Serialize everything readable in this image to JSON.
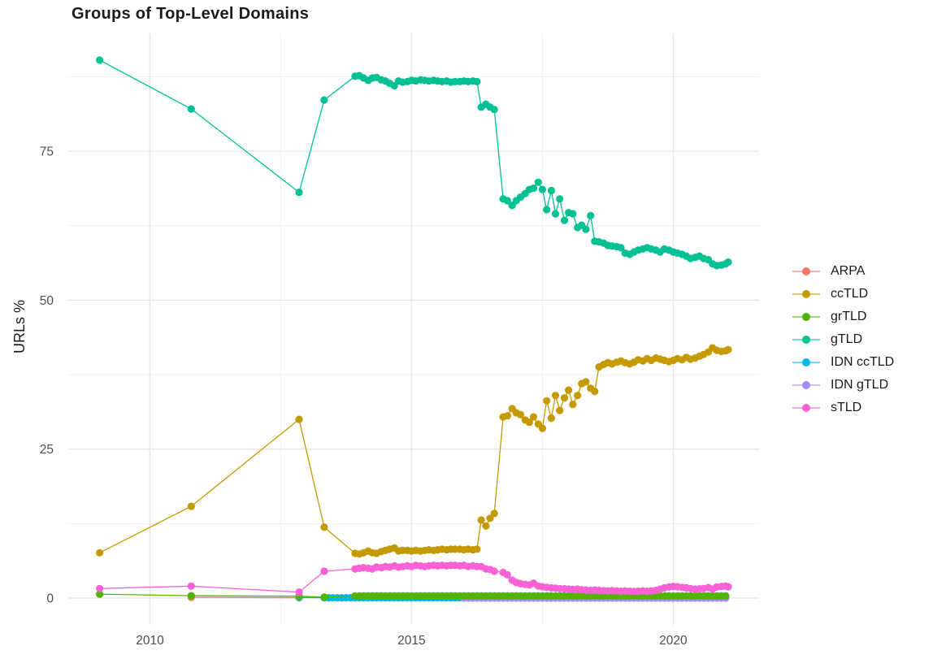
{
  "title": "Groups of Top-Level Domains",
  "y_axis": {
    "title": "URLs %",
    "major_ticks": [
      0,
      25,
      50,
      75
    ],
    "minor_ticks": [
      12.5,
      37.5,
      62.5,
      87.5
    ]
  },
  "x_axis": {
    "major_ticks": [
      2010,
      2015,
      2020
    ],
    "minor_ticks": [
      2012.5,
      2017.5
    ]
  },
  "grid": {
    "major_color": "#e4e4e4",
    "minor_color": "#efefef",
    "tick_label_color": "#4d4d4d"
  },
  "legend": {
    "items": [
      {
        "label": "ARPA",
        "color": "#F8766D"
      },
      {
        "label": "ccTLD",
        "color": "#C49A00"
      },
      {
        "label": "grTLD",
        "color": "#53B400"
      },
      {
        "label": "gTLD",
        "color": "#00C094"
      },
      {
        "label": "IDN ccTLD",
        "color": "#00B6EB"
      },
      {
        "label": "IDN gTLD",
        "color": "#A58AFF"
      },
      {
        "label": "sTLD",
        "color": "#FB61D7"
      }
    ]
  },
  "chart_data": {
    "type": "line",
    "title": "Groups of Top-Level Domains",
    "xlabel": "",
    "ylabel": "URLs %",
    "xlim": [
      2008.44,
      2021.64
    ],
    "ylim": [
      -4.5,
      94.8
    ],
    "legend_position": "right",
    "grid": "on",
    "draw_order": [
      "ARPA",
      "IDN ccTLD",
      "IDN gTLD",
      "grTLD",
      "ccTLD",
      "gTLD",
      "sTLD"
    ],
    "series": [
      {
        "name": "ARPA",
        "color": "#F8766D",
        "points": [
          [
            2010.79,
            0.12
          ],
          [
            2012.85,
            0.05
          ]
        ]
      },
      {
        "name": "ccTLD",
        "color": "#C49A00",
        "points": [
          [
            2009.04,
            7.6
          ],
          [
            2010.79,
            15.4
          ],
          [
            2012.85,
            30.0
          ],
          [
            2013.33,
            11.9
          ],
          [
            2013.92,
            7.5
          ],
          [
            2014.0,
            7.4
          ],
          [
            2014.08,
            7.6
          ],
          [
            2014.17,
            7.9
          ],
          [
            2014.25,
            7.6
          ],
          [
            2014.33,
            7.5
          ],
          [
            2014.42,
            7.8
          ],
          [
            2014.5,
            8.0
          ],
          [
            2014.58,
            8.2
          ],
          [
            2014.67,
            8.4
          ],
          [
            2014.75,
            7.9
          ],
          [
            2014.83,
            8.0
          ],
          [
            2014.92,
            8.0
          ],
          [
            2015.0,
            7.9
          ],
          [
            2015.08,
            8.0
          ],
          [
            2015.17,
            7.9
          ],
          [
            2015.25,
            8.0
          ],
          [
            2015.33,
            8.1
          ],
          [
            2015.42,
            8.0
          ],
          [
            2015.5,
            8.1
          ],
          [
            2015.58,
            8.2
          ],
          [
            2015.67,
            8.1
          ],
          [
            2015.75,
            8.2
          ],
          [
            2015.83,
            8.2
          ],
          [
            2015.92,
            8.2
          ],
          [
            2016.0,
            8.1
          ],
          [
            2016.08,
            8.2
          ],
          [
            2016.17,
            8.1
          ],
          [
            2016.25,
            8.2
          ],
          [
            2016.33,
            13.1
          ],
          [
            2016.42,
            12.1
          ],
          [
            2016.5,
            13.4
          ],
          [
            2016.58,
            14.2
          ],
          [
            2016.75,
            30.4
          ],
          [
            2016.83,
            30.6
          ],
          [
            2016.92,
            31.8
          ],
          [
            2017.0,
            31.1
          ],
          [
            2017.08,
            30.8
          ],
          [
            2017.17,
            29.9
          ],
          [
            2017.25,
            29.5
          ],
          [
            2017.33,
            30.4
          ],
          [
            2017.42,
            29.2
          ],
          [
            2017.5,
            28.5
          ],
          [
            2017.58,
            33.1
          ],
          [
            2017.67,
            30.2
          ],
          [
            2017.75,
            34.0
          ],
          [
            2017.83,
            31.5
          ],
          [
            2017.92,
            33.6
          ],
          [
            2018.0,
            34.9
          ],
          [
            2018.08,
            32.5
          ],
          [
            2018.17,
            34.0
          ],
          [
            2018.25,
            36.0
          ],
          [
            2018.33,
            36.3
          ],
          [
            2018.42,
            35.2
          ],
          [
            2018.5,
            34.7
          ],
          [
            2018.58,
            38.8
          ],
          [
            2018.67,
            39.2
          ],
          [
            2018.75,
            39.5
          ],
          [
            2018.83,
            39.3
          ],
          [
            2018.92,
            39.6
          ],
          [
            2019.0,
            39.8
          ],
          [
            2019.08,
            39.5
          ],
          [
            2019.17,
            39.3
          ],
          [
            2019.25,
            39.6
          ],
          [
            2019.33,
            40.0
          ],
          [
            2019.42,
            39.8
          ],
          [
            2019.5,
            40.2
          ],
          [
            2019.58,
            39.9
          ],
          [
            2019.67,
            40.3
          ],
          [
            2019.75,
            40.1
          ],
          [
            2019.83,
            39.9
          ],
          [
            2019.92,
            39.7
          ],
          [
            2020.0,
            39.9
          ],
          [
            2020.08,
            40.2
          ],
          [
            2020.17,
            40.0
          ],
          [
            2020.25,
            40.4
          ],
          [
            2020.33,
            40.1
          ],
          [
            2020.42,
            40.3
          ],
          [
            2020.5,
            40.6
          ],
          [
            2020.58,
            40.9
          ],
          [
            2020.67,
            41.3
          ],
          [
            2020.75,
            42.0
          ],
          [
            2020.83,
            41.6
          ],
          [
            2020.92,
            41.4
          ],
          [
            2021.0,
            41.5
          ],
          [
            2021.05,
            41.7
          ]
        ]
      },
      {
        "name": "grTLD",
        "color": "#53B400",
        "points": [
          [
            2009.04,
            0.65
          ],
          [
            2010.79,
            0.4
          ],
          [
            2012.85,
            0.3
          ],
          [
            2013.33,
            0.15
          ]
        ],
        "flat": {
          "from": 2013.92,
          "to": 2021.05,
          "step": 0.08333,
          "value": 0.35
        }
      },
      {
        "name": "gTLD",
        "color": "#00C094",
        "points": [
          [
            2009.04,
            90.3
          ],
          [
            2010.79,
            82.1
          ],
          [
            2012.85,
            68.1
          ],
          [
            2013.33,
            83.6
          ],
          [
            2013.92,
            87.6
          ],
          [
            2014.0,
            87.7
          ],
          [
            2014.08,
            87.3
          ],
          [
            2014.17,
            86.9
          ],
          [
            2014.25,
            87.3
          ],
          [
            2014.33,
            87.4
          ],
          [
            2014.42,
            87.0
          ],
          [
            2014.5,
            86.8
          ],
          [
            2014.58,
            86.4
          ],
          [
            2014.67,
            86.0
          ],
          [
            2014.75,
            86.8
          ],
          [
            2014.83,
            86.6
          ],
          [
            2014.92,
            86.7
          ],
          [
            2015.0,
            86.9
          ],
          [
            2015.08,
            86.8
          ],
          [
            2015.17,
            87.0
          ],
          [
            2015.25,
            86.9
          ],
          [
            2015.33,
            86.8
          ],
          [
            2015.42,
            86.9
          ],
          [
            2015.5,
            86.8
          ],
          [
            2015.58,
            86.7
          ],
          [
            2015.67,
            86.8
          ],
          [
            2015.75,
            86.6
          ],
          [
            2015.83,
            86.7
          ],
          [
            2015.92,
            86.7
          ],
          [
            2016.0,
            86.8
          ],
          [
            2016.08,
            86.7
          ],
          [
            2016.17,
            86.8
          ],
          [
            2016.25,
            86.7
          ],
          [
            2016.33,
            82.4
          ],
          [
            2016.42,
            82.9
          ],
          [
            2016.5,
            82.4
          ],
          [
            2016.58,
            82.0
          ],
          [
            2016.75,
            67.0
          ],
          [
            2016.83,
            66.7
          ],
          [
            2016.92,
            65.9
          ],
          [
            2017.0,
            66.7
          ],
          [
            2017.08,
            67.3
          ],
          [
            2017.17,
            67.9
          ],
          [
            2017.25,
            68.6
          ],
          [
            2017.33,
            68.8
          ],
          [
            2017.42,
            69.8
          ],
          [
            2017.5,
            68.6
          ],
          [
            2017.58,
            65.2
          ],
          [
            2017.67,
            68.4
          ],
          [
            2017.75,
            64.5
          ],
          [
            2017.83,
            67.0
          ],
          [
            2017.92,
            63.4
          ],
          [
            2018.0,
            64.7
          ],
          [
            2018.08,
            64.5
          ],
          [
            2018.17,
            62.2
          ],
          [
            2018.25,
            62.6
          ],
          [
            2018.33,
            61.9
          ],
          [
            2018.42,
            64.2
          ],
          [
            2018.5,
            59.9
          ],
          [
            2018.58,
            59.8
          ],
          [
            2018.67,
            59.6
          ],
          [
            2018.75,
            59.2
          ],
          [
            2018.83,
            59.1
          ],
          [
            2018.92,
            59.0
          ],
          [
            2019.0,
            58.8
          ],
          [
            2019.08,
            57.9
          ],
          [
            2019.17,
            57.7
          ],
          [
            2019.25,
            58.1
          ],
          [
            2019.33,
            58.4
          ],
          [
            2019.42,
            58.6
          ],
          [
            2019.5,
            58.8
          ],
          [
            2019.58,
            58.6
          ],
          [
            2019.67,
            58.4
          ],
          [
            2019.75,
            58.1
          ],
          [
            2019.83,
            58.6
          ],
          [
            2019.92,
            58.4
          ],
          [
            2020.0,
            58.1
          ],
          [
            2020.08,
            57.9
          ],
          [
            2020.17,
            57.7
          ],
          [
            2020.25,
            57.4
          ],
          [
            2020.33,
            57.0
          ],
          [
            2020.42,
            57.2
          ],
          [
            2020.5,
            57.4
          ],
          [
            2020.58,
            57.0
          ],
          [
            2020.67,
            56.8
          ],
          [
            2020.75,
            56.1
          ],
          [
            2020.83,
            55.8
          ],
          [
            2020.92,
            55.9
          ],
          [
            2021.0,
            56.1
          ],
          [
            2021.05,
            56.4
          ]
        ]
      },
      {
        "name": "IDN ccTLD",
        "color": "#00B6EB",
        "points": [
          [
            2012.85,
            0.1
          ]
        ],
        "flat": {
          "from": 2013.33,
          "to": 2021.05,
          "step": 0.08333,
          "value": 0.05
        }
      },
      {
        "name": "IDN gTLD",
        "color": "#A58AFF",
        "points": [],
        "flat": {
          "from": 2016.0,
          "to": 2021.05,
          "step": 0.08333,
          "value": 0.0
        }
      },
      {
        "name": "sTLD",
        "color": "#FB61D7",
        "points": [
          [
            2009.04,
            1.6
          ],
          [
            2010.79,
            2.0
          ],
          [
            2012.85,
            1.0
          ],
          [
            2013.33,
            4.5
          ],
          [
            2013.92,
            4.9
          ],
          [
            2014.0,
            5.0
          ],
          [
            2014.08,
            5.1
          ],
          [
            2014.17,
            5.0
          ],
          [
            2014.25,
            4.9
          ],
          [
            2014.33,
            5.2
          ],
          [
            2014.42,
            5.1
          ],
          [
            2014.5,
            5.3
          ],
          [
            2014.58,
            5.2
          ],
          [
            2014.67,
            5.4
          ],
          [
            2014.75,
            5.2
          ],
          [
            2014.83,
            5.3
          ],
          [
            2014.92,
            5.4
          ],
          [
            2015.0,
            5.3
          ],
          [
            2015.08,
            5.5
          ],
          [
            2015.17,
            5.4
          ],
          [
            2015.25,
            5.3
          ],
          [
            2015.33,
            5.4
          ],
          [
            2015.42,
            5.5
          ],
          [
            2015.5,
            5.4
          ],
          [
            2015.58,
            5.5
          ],
          [
            2015.67,
            5.4
          ],
          [
            2015.75,
            5.5
          ],
          [
            2015.83,
            5.5
          ],
          [
            2015.92,
            5.4
          ],
          [
            2016.0,
            5.5
          ],
          [
            2016.08,
            5.3
          ],
          [
            2016.17,
            5.4
          ],
          [
            2016.25,
            5.3
          ],
          [
            2016.33,
            5.3
          ],
          [
            2016.42,
            4.9
          ],
          [
            2016.5,
            4.8
          ],
          [
            2016.58,
            4.5
          ],
          [
            2016.75,
            4.3
          ],
          [
            2016.83,
            3.9
          ],
          [
            2016.92,
            3.0
          ],
          [
            2017.0,
            2.6
          ],
          [
            2017.08,
            2.4
          ],
          [
            2017.17,
            2.3
          ],
          [
            2017.25,
            2.2
          ],
          [
            2017.33,
            2.5
          ],
          [
            2017.42,
            2.0
          ],
          [
            2017.5,
            1.9
          ],
          [
            2017.58,
            1.8
          ],
          [
            2017.67,
            1.7
          ],
          [
            2017.75,
            1.65
          ],
          [
            2017.83,
            1.6
          ],
          [
            2017.92,
            1.55
          ],
          [
            2018.0,
            1.5
          ],
          [
            2018.08,
            1.45
          ],
          [
            2018.17,
            1.5
          ],
          [
            2018.25,
            1.4
          ],
          [
            2018.33,
            1.35
          ],
          [
            2018.42,
            1.3
          ],
          [
            2018.5,
            1.35
          ],
          [
            2018.58,
            1.3
          ],
          [
            2018.67,
            1.25
          ],
          [
            2018.75,
            1.2
          ],
          [
            2018.83,
            1.25
          ],
          [
            2018.92,
            1.2
          ],
          [
            2019.0,
            1.15
          ],
          [
            2019.08,
            1.2
          ],
          [
            2019.17,
            1.15
          ],
          [
            2019.25,
            1.1
          ],
          [
            2019.33,
            1.15
          ],
          [
            2019.42,
            1.2
          ],
          [
            2019.5,
            1.15
          ],
          [
            2019.58,
            1.2
          ],
          [
            2019.67,
            1.3
          ],
          [
            2019.75,
            1.5
          ],
          [
            2019.83,
            1.7
          ],
          [
            2019.92,
            1.85
          ],
          [
            2020.0,
            1.95
          ],
          [
            2020.08,
            1.9
          ],
          [
            2020.17,
            1.8
          ],
          [
            2020.25,
            1.7
          ],
          [
            2020.33,
            1.6
          ],
          [
            2020.42,
            1.5
          ],
          [
            2020.5,
            1.55
          ],
          [
            2020.58,
            1.6
          ],
          [
            2020.67,
            1.75
          ],
          [
            2020.75,
            1.5
          ],
          [
            2020.83,
            1.85
          ],
          [
            2020.92,
            1.95
          ],
          [
            2021.0,
            2.0
          ],
          [
            2021.05,
            1.9
          ]
        ]
      }
    ]
  }
}
